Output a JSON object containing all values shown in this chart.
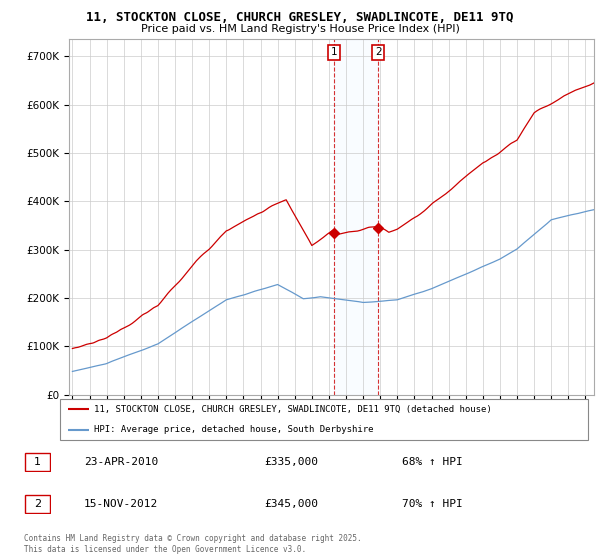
{
  "title_line1": "11, STOCKTON CLOSE, CHURCH GRESLEY, SWADLINCOTE, DE11 9TQ",
  "title_line2": "Price paid vs. HM Land Registry's House Price Index (HPI)",
  "legend_red": "11, STOCKTON CLOSE, CHURCH GRESLEY, SWADLINCOTE, DE11 9TQ (detached house)",
  "legend_blue": "HPI: Average price, detached house, South Derbyshire",
  "transactions": [
    {
      "num": 1,
      "date": "23-APR-2010",
      "price": "£335,000",
      "pct": "68% ↑ HPI",
      "year": 2010.3
    },
    {
      "num": 2,
      "date": "15-NOV-2012",
      "price": "£345,000",
      "pct": "70% ↑ HPI",
      "year": 2012.88
    }
  ],
  "footer": "Contains HM Land Registry data © Crown copyright and database right 2025.\nThis data is licensed under the Open Government Licence v3.0.",
  "red_color": "#cc0000",
  "blue_color": "#6699cc",
  "marker_box_color": "#cc0000",
  "shaded_color": "#ddeeff",
  "yticks": [
    0,
    100,
    200,
    300,
    400,
    500,
    600,
    700
  ],
  "xlim_start": 1994.8,
  "xlim_end": 2025.5,
  "ylim_min": 0,
  "ylim_max": 735000
}
